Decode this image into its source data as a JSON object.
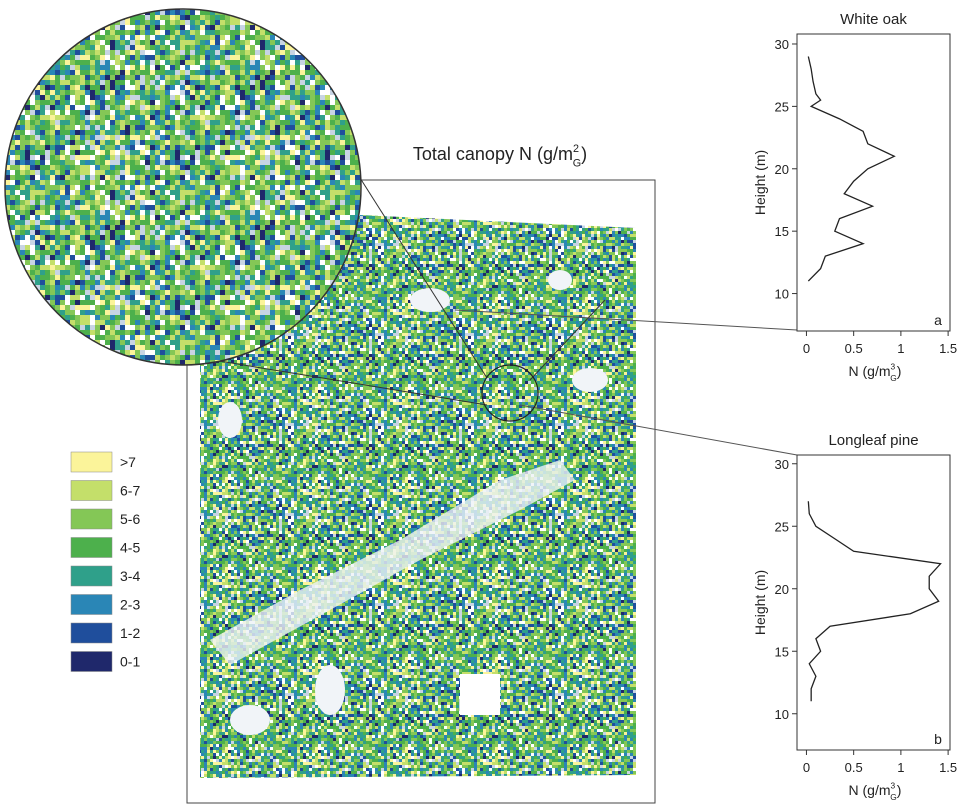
{
  "map": {
    "title": {
      "text": "Total canopy N (g/m",
      "sup": "2",
      "sub": "G",
      "end": ")"
    },
    "legend": [
      {
        "label": ">7",
        "color": "#fbf49a"
      },
      {
        "label": "6-7",
        "color": "#c4df6a"
      },
      {
        "label": "5-6",
        "color": "#84c756"
      },
      {
        "label": "4-5",
        "color": "#4db04c"
      },
      {
        "label": "3-4",
        "color": "#2fa08a"
      },
      {
        "label": "2-3",
        "color": "#2a86b6"
      },
      {
        "label": "1-2",
        "color": "#1f4e9c"
      },
      {
        "label": "0-1",
        "color": "#1f286b"
      }
    ]
  },
  "chart_data": [
    {
      "type": "line",
      "title": "White oak",
      "panel_label": "a",
      "xlabel": {
        "text": "N (g/m",
        "sup": "3",
        "sub": "G",
        "end": ")"
      },
      "ylabel": "Height (m)",
      "xlim": [
        -0.1,
        1.52
      ],
      "ylim": [
        7,
        30.8
      ],
      "xticks": [
        0,
        0.5,
        1,
        1.5
      ],
      "yticks": [
        10,
        15,
        20,
        25,
        30
      ],
      "series": [
        {
          "color": "#222222",
          "x": [
            0.02,
            0.05,
            0.07,
            0.1,
            0.15,
            0.05,
            0.35,
            0.6,
            0.65,
            0.93,
            0.65,
            0.5,
            0.4,
            0.7,
            0.35,
            0.3,
            0.6,
            0.2,
            0.15,
            0.02
          ],
          "y": [
            29,
            28,
            27,
            26,
            25.5,
            25,
            24,
            23,
            22,
            21,
            20,
            19,
            18,
            17,
            16,
            15,
            14,
            13,
            12,
            11
          ]
        }
      ]
    },
    {
      "type": "line",
      "title": "Longleaf pine",
      "panel_label": "b",
      "xlabel": {
        "text": "N (g/m",
        "sup": "3",
        "sub": "G",
        "end": ")"
      },
      "ylabel": "Height (m)",
      "xlim": [
        -0.1,
        1.52
      ],
      "ylim": [
        7.1,
        30.7
      ],
      "xticks": [
        0,
        0.5,
        1,
        1.5
      ],
      "yticks": [
        10,
        15,
        20,
        25,
        30
      ],
      "series": [
        {
          "color": "#222222",
          "x": [
            0.02,
            0.03,
            0.1,
            0.3,
            0.5,
            1.42,
            1.3,
            1.3,
            1.4,
            1.1,
            0.25,
            0.1,
            0.15,
            0.03,
            0.1,
            0.05,
            0.05
          ],
          "y": [
            27,
            26,
            25,
            24,
            23,
            22,
            21,
            20,
            19,
            18,
            17,
            16,
            15,
            14,
            13,
            12,
            11
          ]
        }
      ]
    }
  ]
}
